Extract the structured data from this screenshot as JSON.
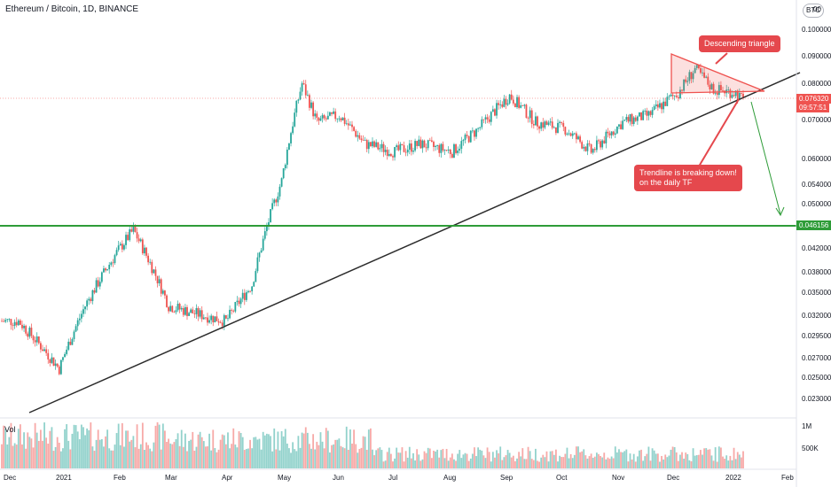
{
  "header": {
    "title": "Ethereum / Bitcoin, 1D, BINANCE",
    "currency": "BTC",
    "top_cut_label": "00"
  },
  "volume": {
    "label": "Vol",
    "ticks": [
      "1M",
      "500K"
    ]
  },
  "price_axis": {
    "ticks": [
      "0.100000",
      "0.090000",
      "0.080000",
      "0.070000",
      "0.060000",
      "0.054000",
      "0.050000",
      "0.042000",
      "0.038000",
      "0.035000",
      "0.032000",
      "0.029500",
      "0.027000",
      "0.025000",
      "0.023000"
    ],
    "last_price": "0.076320",
    "countdown": "09:57:51",
    "support_level": "0.046156"
  },
  "time_axis": {
    "labels": [
      "Dec",
      "2021",
      "Feb",
      "Mar",
      "Apr",
      "May",
      "Jun",
      "Jul",
      "Aug",
      "Sep",
      "Oct",
      "Nov",
      "Dec",
      "2022",
      "Feb"
    ]
  },
  "annotations": {
    "triangle_note": "Descending triangle",
    "trendline_note_line1": "Trendline is breaking down!",
    "trendline_note_line2": "on the daily TF"
  },
  "colors": {
    "up": "#26a69a",
    "down": "#ef5350",
    "support": "#2e9c38",
    "trend": "#2b2b2b",
    "callout": "#e5484d",
    "arrow": "#2e9c38"
  },
  "chart_data": {
    "type": "candlestick",
    "symbol": "Ethereum / Bitcoin",
    "interval": "1D",
    "exchange": "BINANCE",
    "close_series": [
      {
        "date": "2020-12",
        "close": 0.031
      },
      {
        "date": "2021-01-01",
        "close": 0.0255
      },
      {
        "date": "2021-01-15",
        "close": 0.033
      },
      {
        "date": "2021-02-01",
        "close": 0.041
      },
      {
        "date": "2021-02-10",
        "close": 0.045
      },
      {
        "date": "2021-03-01",
        "close": 0.033
      },
      {
        "date": "2021-03-15",
        "close": 0.032
      },
      {
        "date": "2021-04-01",
        "close": 0.031
      },
      {
        "date": "2021-04-15",
        "close": 0.036
      },
      {
        "date": "2021-05-01",
        "close": 0.055
      },
      {
        "date": "2021-05-12",
        "close": 0.082
      },
      {
        "date": "2021-05-20",
        "close": 0.07
      },
      {
        "date": "2021-06-01",
        "close": 0.072
      },
      {
        "date": "2021-06-15",
        "close": 0.064
      },
      {
        "date": "2021-07-01",
        "close": 0.062
      },
      {
        "date": "2021-07-15",
        "close": 0.064
      },
      {
        "date": "2021-08-01",
        "close": 0.062
      },
      {
        "date": "2021-08-15",
        "close": 0.068
      },
      {
        "date": "2021-09-01",
        "close": 0.078
      },
      {
        "date": "2021-09-15",
        "close": 0.07
      },
      {
        "date": "2021-10-01",
        "close": 0.068
      },
      {
        "date": "2021-10-15",
        "close": 0.062
      },
      {
        "date": "2021-11-01",
        "close": 0.07
      },
      {
        "date": "2021-11-15",
        "close": 0.072
      },
      {
        "date": "2021-12-01",
        "close": 0.079
      },
      {
        "date": "2021-12-10",
        "close": 0.087
      },
      {
        "date": "2021-12-20",
        "close": 0.08
      },
      {
        "date": "2022-01-01",
        "close": 0.079
      },
      {
        "date": "2022-01-05",
        "close": 0.0763
      }
    ],
    "horizontal_lines": [
      {
        "name": "support",
        "value": 0.046156
      },
      {
        "name": "last",
        "value": 0.07632
      }
    ],
    "ylim": [
      0.021,
      0.11
    ],
    "yscale": "log",
    "grid": false
  }
}
